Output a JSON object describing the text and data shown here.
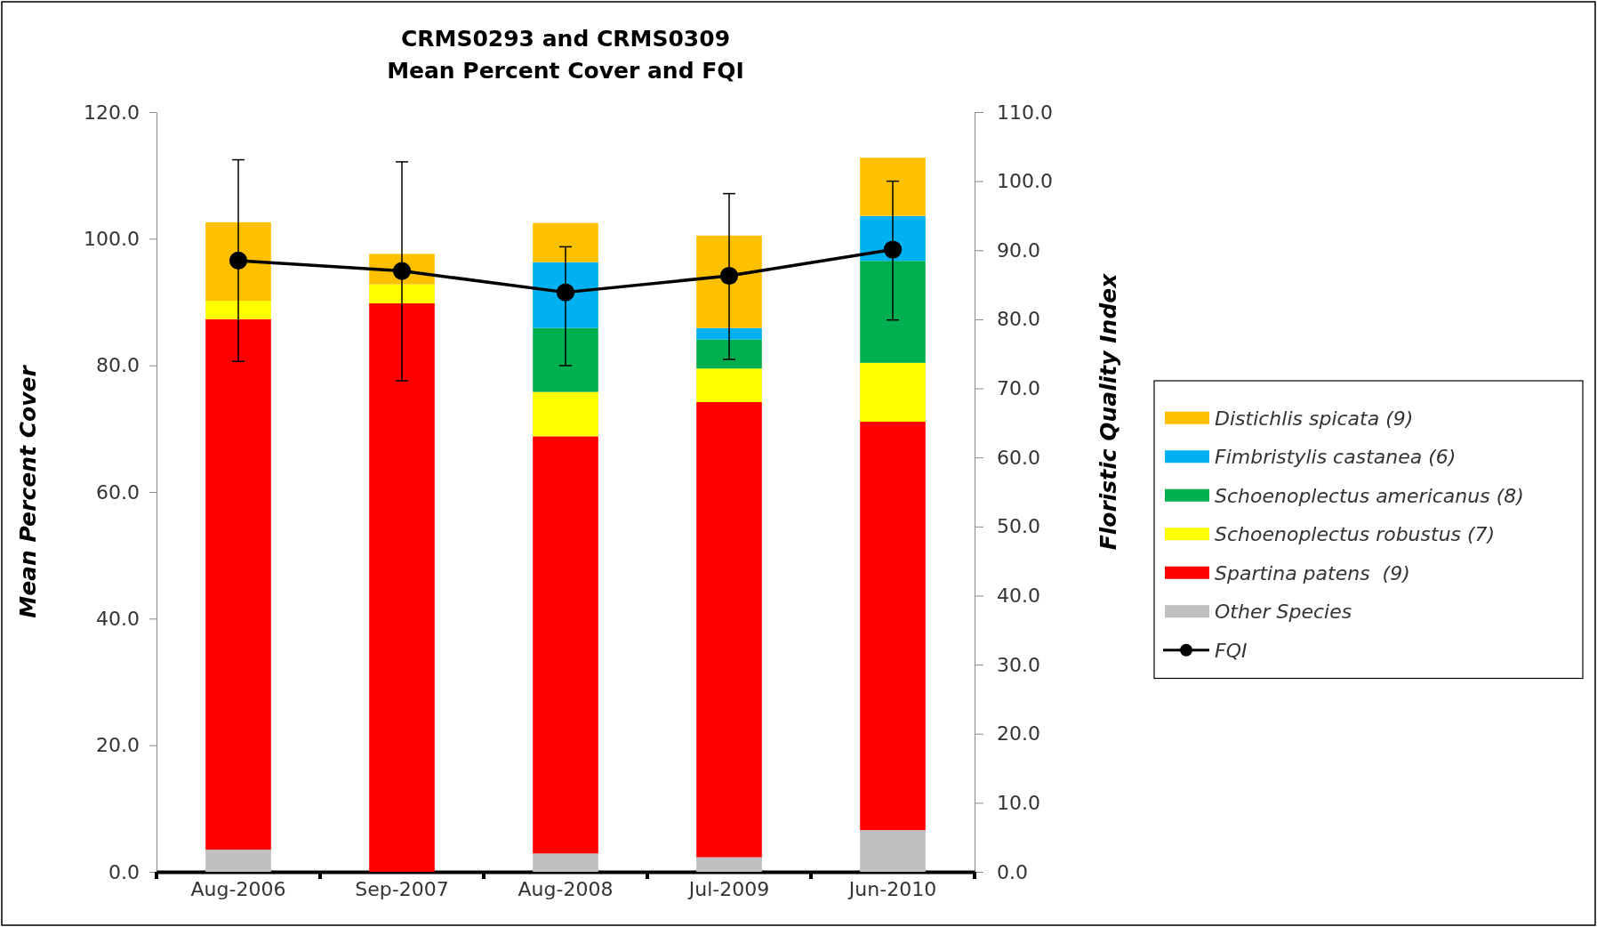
{
  "chart_data": {
    "type": "bar",
    "title": "CRMS0293 and CRMS0309",
    "subtitle": "Mean Percent Cover and FQI",
    "ylabel": "Mean Percent Cover",
    "y2label": "Floristic Quality Index",
    "categories": [
      "Aug-2006",
      "Sep-2007",
      "Aug-2008",
      "Jul-2009",
      "Jun-2010"
    ],
    "stacked": true,
    "series": [
      {
        "name": "Other Species",
        "color": "#bfbfbf",
        "values": [
          3.5,
          0,
          2.9,
          2.3,
          6.6
        ]
      },
      {
        "name": "Spartina patens  (9)",
        "color": "#ff0000",
        "values": [
          83.8,
          89.8,
          65.9,
          71.9,
          64.5
        ]
      },
      {
        "name": "Schoenoplectus robustus (7)",
        "color": "#ffff00",
        "values": [
          2.9,
          3.0,
          7.0,
          5.3,
          9.3
        ]
      },
      {
        "name": "Schoenoplectus americanus (8)",
        "color": "#00b050",
        "values": [
          0,
          0,
          10.1,
          4.6,
          16.1
        ]
      },
      {
        "name": "Fimbristylis castanea (6)",
        "color": "#00b0f0",
        "values": [
          0,
          0,
          10.4,
          1.8,
          7.1
        ]
      },
      {
        "name": "Distichlis spicata (9)",
        "color": "#ffc000",
        "values": [
          12.4,
          4.8,
          6.2,
          14.6,
          9.2
        ]
      },
      {
        "name": "FQI",
        "type": "line",
        "axis": "y2",
        "color": "#000000",
        "marker": "circle",
        "values": [
          88.5,
          87.0,
          83.9,
          86.3,
          90.1
        ],
        "errors": [
          [
            73.9,
            103.1
          ],
          [
            71.1,
            102.8
          ],
          [
            73.3,
            90.5
          ],
          [
            74.2,
            98.2
          ],
          [
            79.9,
            100.0
          ]
        ]
      }
    ],
    "ylim": [
      0,
      120
    ],
    "yticks": [
      {
        "value": 0,
        "label": "0.0"
      },
      {
        "value": 20,
        "label": "20.0"
      },
      {
        "value": 40,
        "label": "40.0"
      },
      {
        "value": 60,
        "label": "60.0"
      },
      {
        "value": 80,
        "label": "80.0"
      },
      {
        "value": 100,
        "label": "100.0"
      },
      {
        "value": 120,
        "label": "120.0"
      }
    ],
    "y2lim": [
      0,
      110
    ],
    "y2ticks": [
      {
        "value": 0,
        "label": "0.0"
      },
      {
        "value": 10,
        "label": "10.0"
      },
      {
        "value": 20,
        "label": "20.0"
      },
      {
        "value": 30,
        "label": "30.0"
      },
      {
        "value": 40,
        "label": "40.0"
      },
      {
        "value": 50,
        "label": "50.0"
      },
      {
        "value": 60,
        "label": "60.0"
      },
      {
        "value": 70,
        "label": "70.0"
      },
      {
        "value": 80,
        "label": "80.0"
      },
      {
        "value": 90,
        "label": "90.0"
      },
      {
        "value": 100,
        "label": "100.0"
      },
      {
        "value": 110,
        "label": "110.0"
      }
    ],
    "legend": "right",
    "grid": false
  }
}
